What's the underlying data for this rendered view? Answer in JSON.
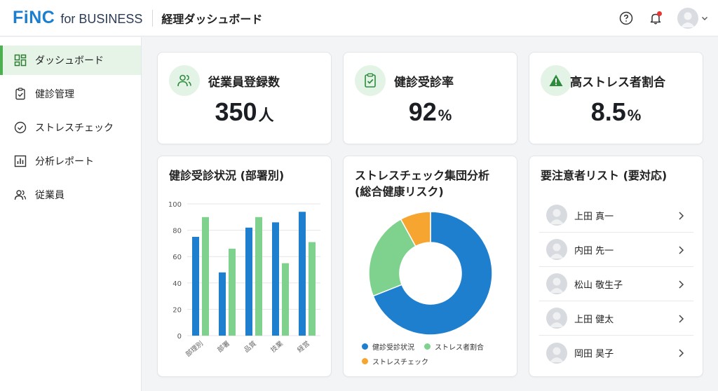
{
  "header": {
    "logo_brand": "FiNC",
    "logo_suffix": "for BUSINESS",
    "title": "経理ダッシュボード"
  },
  "icons": {
    "help": "help-icon",
    "notifications": "bell-icon",
    "avatar": "user-avatar-icon",
    "menu": "chevron-down-icon"
  },
  "colors": {
    "brand": "#1a7fd0",
    "accent_green": "#4caf50",
    "blue_series": "#1e7fcf",
    "green_series": "#7fd18e",
    "orange_series": "#f7a531",
    "notification": "#e53935"
  },
  "sidebar": {
    "items": [
      {
        "label": "ダッシュボード",
        "icon": "dashboard-icon",
        "active": true
      },
      {
        "label": "健診管理",
        "icon": "clipboard-check-icon",
        "active": false
      },
      {
        "label": "ストレスチェック",
        "icon": "check-circle-icon",
        "active": false
      },
      {
        "label": "分析レポート",
        "icon": "bar-chart-icon",
        "active": false
      },
      {
        "label": "従業員",
        "icon": "users-icon",
        "active": false
      }
    ]
  },
  "kpis": [
    {
      "label": "従業員登録数",
      "value": "350",
      "unit": "人",
      "icon": "users-icon"
    },
    {
      "label": "健診受診率",
      "value": "92",
      "unit": "%",
      "icon": "clipboard-check-icon"
    },
    {
      "label": "高ストレス者割合",
      "value": "8.5",
      "unit": "%",
      "icon": "warning-icon"
    }
  ],
  "bar_card": {
    "title": "健診受診状況 (部署別)"
  },
  "donut_card": {
    "title_line1": "ストレスチェック集団分析",
    "title_line2": "(総合健康リスク)"
  },
  "alert_card": {
    "title": "要注意者リスト (要対応)",
    "people": [
      {
        "name": "上田 真一"
      },
      {
        "name": "内田 先一"
      },
      {
        "name": "松山 敬生子"
      },
      {
        "name": "上田 健太"
      },
      {
        "name": "岡田 昊子"
      }
    ]
  },
  "chart_data": [
    {
      "type": "bar",
      "title": "健診受診状況 (部署別)",
      "categories": [
        "部理別",
        "部署",
        "品質",
        "技業",
        "経営"
      ],
      "series": [
        {
          "values": [
            75,
            48,
            82,
            86,
            94
          ],
          "color": "#1e7fcf"
        },
        {
          "values": [
            90,
            66,
            90,
            55,
            71
          ],
          "color": "#7fd18e"
        }
      ],
      "ylim": [
        0,
        100
      ],
      "yticks": [
        0,
        20,
        40,
        60,
        80,
        100
      ],
      "grid": true
    },
    {
      "type": "pie",
      "title": "ストレスチェック集団分析 (総合健康リスク)",
      "labels": [
        "健診受診状況",
        "ストレス者割合",
        "ストレスチェック"
      ],
      "values": [
        69,
        23,
        8
      ],
      "colors": [
        "#1e7fcf",
        "#7fd18e",
        "#f7a531"
      ],
      "donut": true,
      "legend": "bottom"
    }
  ]
}
